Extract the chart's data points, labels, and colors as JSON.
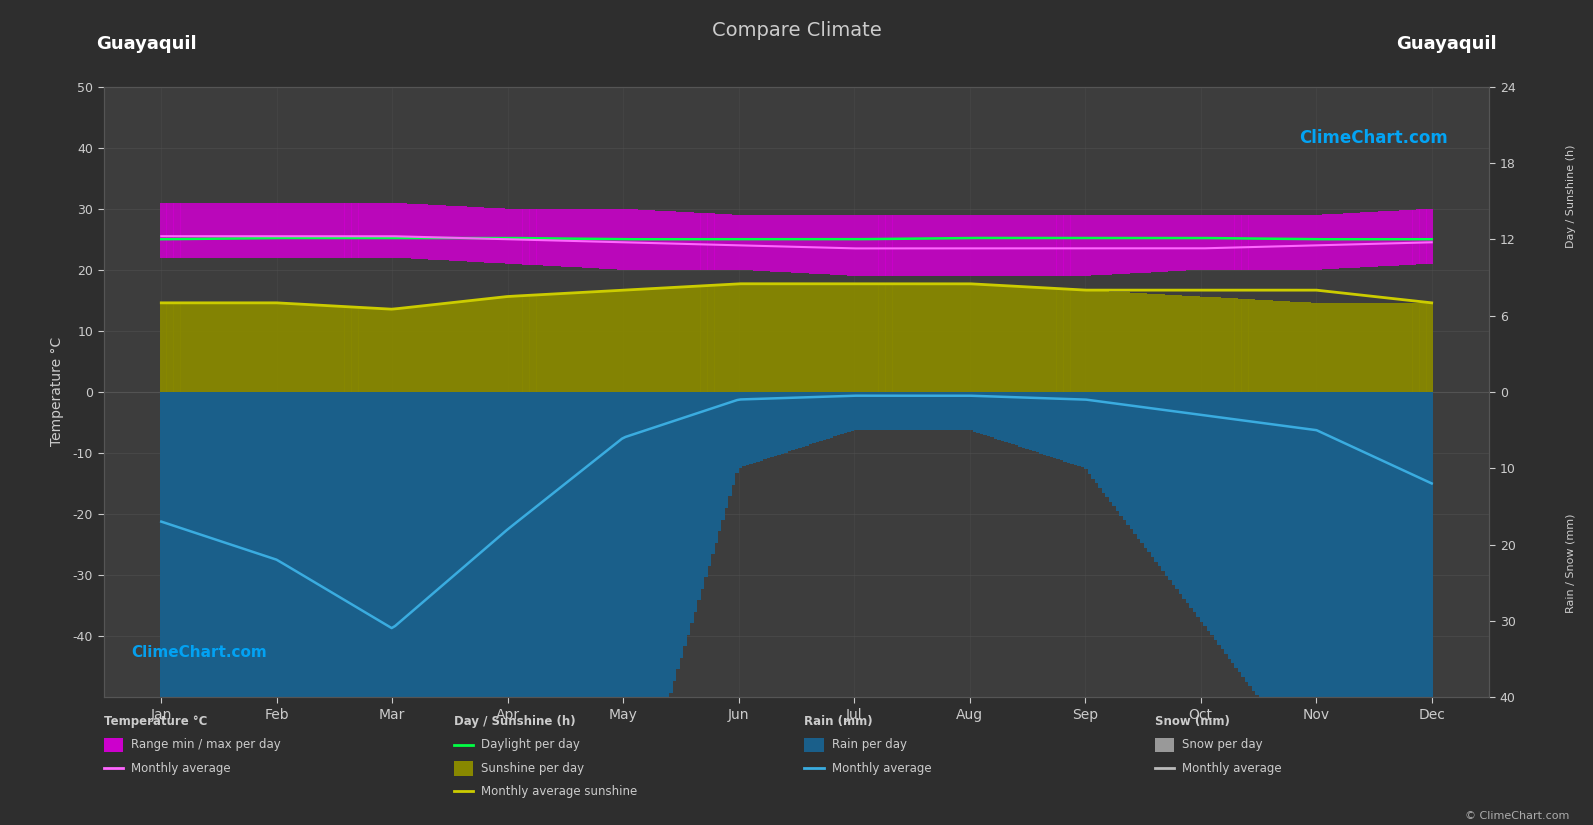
{
  "title": "Compare Climate",
  "city_left": "Guayaquil",
  "city_right": "Guayaquil",
  "background_color": "#2e2e2e",
  "plot_bg_color": "#3d3d3d",
  "grid_color": "#555555",
  "text_color": "#cccccc",
  "months": [
    "Jan",
    "Feb",
    "Mar",
    "Apr",
    "May",
    "Jun",
    "Jul",
    "Aug",
    "Sep",
    "Oct",
    "Nov",
    "Dec"
  ],
  "temp_max_daily": [
    31,
    31,
    31,
    30,
    30,
    29,
    29,
    29,
    29,
    29,
    29,
    30
  ],
  "temp_min_daily": [
    22,
    22,
    22,
    21,
    20,
    20,
    19,
    19,
    19,
    20,
    20,
    21
  ],
  "temp_avg_monthly": [
    25.5,
    25.5,
    25.5,
    25.0,
    24.5,
    24.0,
    23.5,
    23.5,
    23.5,
    23.5,
    24.0,
    24.5
  ],
  "daylight_hours": [
    12.0,
    12.1,
    12.1,
    12.1,
    12.0,
    12.0,
    12.0,
    12.1,
    12.1,
    12.1,
    12.0,
    12.0
  ],
  "sunshine_hours_daily": [
    7.0,
    7.0,
    6.5,
    7.5,
    8.0,
    8.5,
    8.5,
    8.5,
    8.0,
    7.5,
    7.0,
    7.0
  ],
  "sunshine_avg_hours": [
    7.0,
    7.0,
    6.5,
    7.5,
    8.0,
    8.5,
    8.5,
    8.5,
    8.0,
    8.0,
    8.0,
    7.0
  ],
  "rain_daily_mm": [
    170,
    200,
    280,
    180,
    60,
    10,
    5,
    5,
    10,
    30,
    50,
    120
  ],
  "rain_monthly_curve_mm": [
    17.0,
    22.0,
    31.0,
    18.0,
    6.0,
    1.0,
    0.5,
    0.5,
    1.0,
    3.0,
    5.0,
    12.0
  ],
  "snow_daily_mm": [
    0,
    0,
    0,
    0,
    0,
    0,
    0,
    0,
    0,
    0,
    0,
    0
  ],
  "color_temp_range": "#cc00cc",
  "color_temp_avg": "#ff66ff",
  "color_daylight": "#00ff44",
  "color_sunshine_fill": "#888800",
  "color_sunshine_line": "#cccc00",
  "color_rain_fill": "#1a5f8a",
  "color_rain_line": "#3aace0",
  "color_snow_fill": "#999999",
  "color_snow_line": "#bbbbbb",
  "temp_scale": 1.0,
  "rain_scale": 1.25,
  "sunshine_scale": 2.0833,
  "watermark_color": "#00aaff",
  "copyright_text": "© ClimeChart.com",
  "watermark_text": "ClimeChart.com",
  "legend_col1_title": "Temperature °C",
  "legend_col2_title": "Day / Sunshine (h)",
  "legend_col3_title": "Rain (mm)",
  "legend_col4_title": "Snow (mm)",
  "legend_temp_range": "Range min / max per day",
  "legend_temp_avg": "Monthly average",
  "legend_daylight": "Daylight per day",
  "legend_sunshine": "Sunshine per day",
  "legend_sunshine_avg": "Monthly average sunshine",
  "legend_rain": "Rain per day",
  "legend_rain_avg": "Monthly average",
  "legend_snow": "Snow per day",
  "legend_snow_avg": "Monthly average"
}
